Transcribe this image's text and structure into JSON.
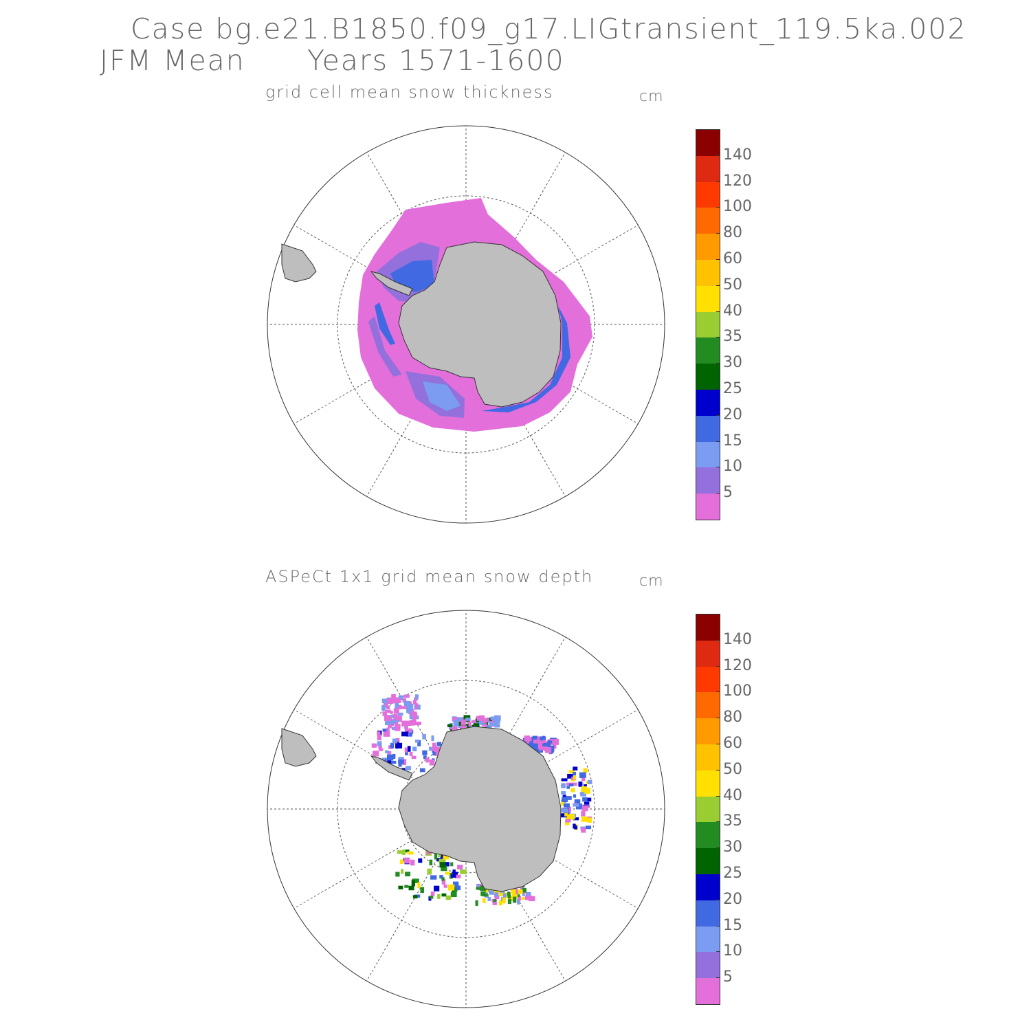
{
  "header": {
    "case": "Case bg.e21.B1850.f09_g17.LIGtransient_119.5ka.002",
    "period": "JFM Mean      Years 1571-1600"
  },
  "panels": [
    {
      "title": "grid cell mean snow thickness",
      "units": "cm"
    },
    {
      "title": "ASPeCt 1x1 grid mean snow depth",
      "units": "cm"
    }
  ],
  "colorbar": {
    "colors": [
      "#e36fdb",
      "#9370db",
      "#7b9cf0",
      "#4169e1",
      "#0000cd",
      "#006400",
      "#228b22",
      "#9acd32",
      "#ffe000",
      "#ffc200",
      "#ff9a00",
      "#ff6a00",
      "#ff3a00",
      "#de2a10",
      "#8b0000"
    ],
    "labels": [
      "5",
      "10",
      "15",
      "20",
      "25",
      "30",
      "35",
      "40",
      "50",
      "60",
      "80",
      "100",
      "120",
      "140"
    ]
  },
  "map_style": {
    "land_color": "#bebebe",
    "coast_color": "#333333",
    "grid_color": "#555555"
  }
}
